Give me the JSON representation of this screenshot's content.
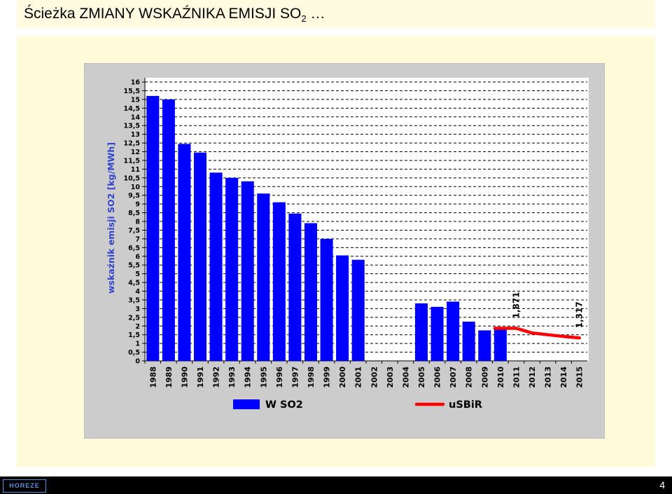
{
  "page": {
    "title": "Ścieżka ZMIANY WSKAŹNIKA EMISJI SO",
    "title_sub": "2",
    "title_suffix": " …",
    "page_number": "4",
    "logo_text": "HOREZE"
  },
  "chart_data": {
    "type": "bar",
    "ylabel": "wskaźnik emisji  SO2  [kg/MWh]",
    "ylim": [
      0,
      16
    ],
    "ytick_step": 0.5,
    "yticks": [
      "0",
      "0,5",
      "1",
      "1,5",
      "2",
      "2,5",
      "3",
      "3,5",
      "4",
      "4,5",
      "5",
      "5,5",
      "6",
      "6,5",
      "7",
      "7,5",
      "8",
      "8,5",
      "9",
      "9,5",
      "10",
      "10,5",
      "11",
      "11,5",
      "12",
      "12,5",
      "13",
      "13,5",
      "14",
      "14,5",
      "15",
      "15,5",
      "16"
    ],
    "grid": true,
    "legend_position": "bottom",
    "categories": [
      "1988",
      "1989",
      "1990",
      "1991",
      "1992",
      "1993",
      "1994",
      "1995",
      "1996",
      "1997",
      "1998",
      "1999",
      "2000",
      "2001",
      "2002",
      "2003",
      "2004",
      "2005",
      "2006",
      "2007",
      "2008",
      "2009",
      "2010",
      "2011",
      "2012",
      "2013",
      "2014",
      "2015"
    ],
    "series": [
      {
        "name": "W SO2",
        "type": "bar",
        "color": "#0000ff",
        "values": [
          15.2,
          15.0,
          12.45,
          11.95,
          10.8,
          10.5,
          10.3,
          9.6,
          9.1,
          8.45,
          7.9,
          7.0,
          6.05,
          5.8,
          null,
          null,
          null,
          3.3,
          3.1,
          3.4,
          2.25,
          1.75,
          1.8,
          null,
          null,
          null,
          null,
          null
        ]
      },
      {
        "name": "uSBiR",
        "type": "line",
        "color": "#ff0000",
        "values": [
          null,
          null,
          null,
          null,
          null,
          null,
          null,
          null,
          null,
          null,
          null,
          null,
          null,
          null,
          null,
          null,
          null,
          null,
          null,
          null,
          null,
          null,
          1.871,
          1.871,
          1.6,
          1.5,
          1.4,
          1.317
        ]
      }
    ],
    "annotations": [
      {
        "text": "1,871",
        "category": "2011"
      },
      {
        "text": "1,317",
        "category": "2015"
      }
    ]
  }
}
